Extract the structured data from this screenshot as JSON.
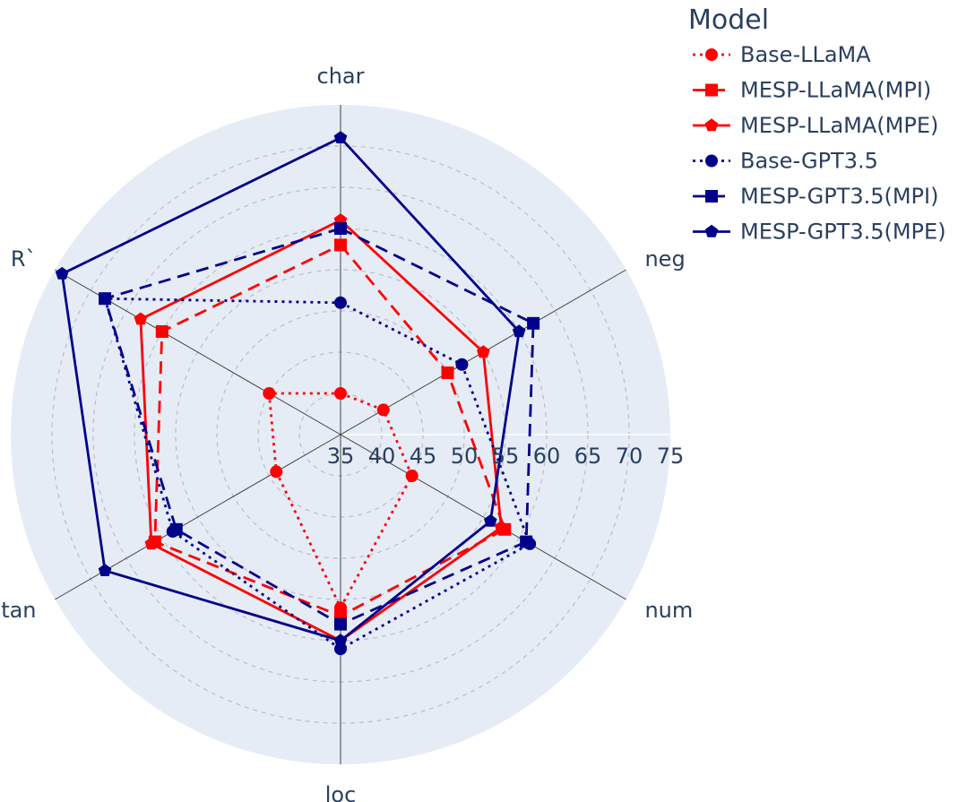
{
  "chart_data": {
    "type": "radar",
    "axes": [
      "char",
      "neg",
      "num",
      "loc",
      "stan",
      "R`"
    ],
    "radial_ticks": [
      "35",
      "40",
      "45",
      "50",
      "55",
      "60",
      "65",
      "70",
      "75"
    ],
    "radial_range": [
      35,
      75
    ],
    "grid": true,
    "legend_title": "Model",
    "legend_position": "top-right",
    "background_color": "#e5ecf6",
    "series": [
      {
        "name": "Base-LLaMA",
        "color": "#ff0000",
        "dash": "dot",
        "marker": "circle",
        "values": [
          40,
          41,
          45,
          56,
          44,
          45
        ]
      },
      {
        "name": "MESP-LLaMA(MPI)",
        "color": "#ff0000",
        "dash": "dash",
        "marker": "square",
        "values": [
          58,
          50,
          58,
          57,
          61,
          60
        ]
      },
      {
        "name": "MESP-LLaMA(MPE)",
        "color": "#ff0000",
        "dash": "solid",
        "marker": "pentagon",
        "values": [
          61,
          55,
          57.5,
          60,
          61.5,
          63
        ]
      },
      {
        "name": "Base-GPT3.5",
        "color": "#00008b",
        "dash": "dot",
        "marker": "circle",
        "values": [
          51,
          52,
          61.5,
          61,
          58.5,
          68
        ]
      },
      {
        "name": "MESP-GPT3.5(MPI)",
        "color": "#00008b",
        "dash": "dash",
        "marker": "square",
        "values": [
          60,
          62,
          61,
          58,
          58,
          68
        ]
      },
      {
        "name": "MESP-GPT3.5(MPE)",
        "color": "#00008b",
        "dash": "solid",
        "marker": "pentagon",
        "values": [
          71,
          60,
          56,
          60,
          68,
          74
        ]
      }
    ]
  }
}
